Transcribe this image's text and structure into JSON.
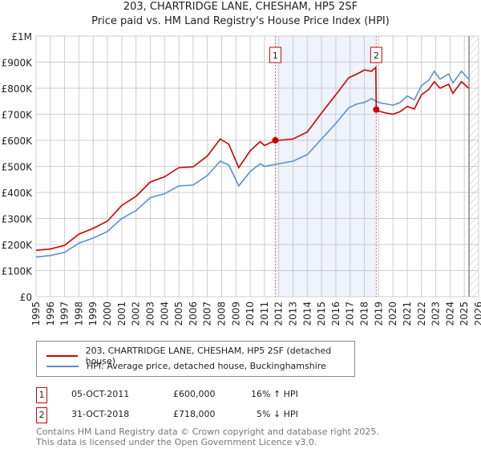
{
  "chart_data": {
    "type": "line",
    "title": "203, CHARTRIDGE LANE, CHESHAM, HP5 2SF",
    "subtitle": "Price paid vs. HM Land Registry's House Price Index (HPI)",
    "xlim": [
      1995,
      2026
    ],
    "ylim": [
      0,
      1000000
    ],
    "x_ticks": [
      "1995",
      "1996",
      "1997",
      "1998",
      "1999",
      "2000",
      "2001",
      "2002",
      "2003",
      "2004",
      "2005",
      "2006",
      "2007",
      "2008",
      "2009",
      "2010",
      "2011",
      "2012",
      "2013",
      "2014",
      "2015",
      "2016",
      "2017",
      "2018",
      "2019",
      "2020",
      "2021",
      "2022",
      "2023",
      "2024",
      "2025",
      "2026"
    ],
    "y_ticks": [
      {
        "v": 0,
        "l": "£0"
      },
      {
        "v": 100000,
        "l": "£100K"
      },
      {
        "v": 200000,
        "l": "£200K"
      },
      {
        "v": 300000,
        "l": "£300K"
      },
      {
        "v": 400000,
        "l": "£400K"
      },
      {
        "v": 500000,
        "l": "£500K"
      },
      {
        "v": 600000,
        "l": "£600K"
      },
      {
        "v": 700000,
        "l": "£700K"
      },
      {
        "v": 800000,
        "l": "£800K"
      },
      {
        "v": 900000,
        "l": "£900K"
      },
      {
        "v": 1000000,
        "l": "£1M"
      }
    ],
    "series": [
      {
        "name": "203, CHARTRIDGE LANE, CHESHAM, HP5 2SF (detached house)",
        "color": "#cc0000",
        "x": [
          1995,
          1996,
          1997,
          1998,
          1999,
          2000,
          2001,
          2002,
          2003,
          2004,
          2005,
          2006,
          2007,
          2007.9,
          2008.5,
          2009.2,
          2010,
          2010.7,
          2011,
          2011.76,
          2012,
          2013,
          2014,
          2015,
          2016,
          2016.9,
          2017.5,
          2018,
          2018.5,
          2018.8,
          2018.83,
          2019,
          2019.5,
          2020,
          2020.5,
          2021,
          2021.5,
          2022,
          2022.5,
          2022.9,
          2023.3,
          2023.9,
          2024.2,
          2024.8,
          2025.3
        ],
        "y": [
          178000,
          183000,
          197000,
          240000,
          262000,
          290000,
          350000,
          385000,
          440000,
          460000,
          495000,
          498000,
          540000,
          605000,
          585000,
          495000,
          560000,
          595000,
          580000,
          600000,
          600000,
          605000,
          632000,
          705000,
          775000,
          840000,
          855000,
          870000,
          865000,
          880000,
          718000,
          712000,
          705000,
          700000,
          710000,
          730000,
          720000,
          775000,
          795000,
          825000,
          800000,
          815000,
          780000,
          825000,
          800000
        ]
      },
      {
        "name": "HPI: Average price, detached house, Buckinghamshire",
        "color": "#5b8fd0",
        "x": [
          1995,
          1996,
          1997,
          1998,
          1999,
          2000,
          2001,
          2002,
          2003,
          2004,
          2005,
          2006,
          2007,
          2007.9,
          2008.5,
          2009.2,
          2010,
          2010.7,
          2011,
          2012,
          2013,
          2014,
          2015,
          2016,
          2016.9,
          2017.5,
          2018,
          2018.5,
          2019,
          2019.5,
          2020,
          2020.5,
          2021,
          2021.5,
          2022,
          2022.5,
          2022.9,
          2023.3,
          2023.9,
          2024.2,
          2024.8,
          2025.3
        ],
        "y": [
          152000,
          158000,
          170000,
          205000,
          225000,
          250000,
          300000,
          330000,
          380000,
          395000,
          425000,
          428000,
          465000,
          520000,
          505000,
          425000,
          480000,
          510000,
          500000,
          510000,
          520000,
          545000,
          605000,
          665000,
          725000,
          740000,
          745000,
          760000,
          745000,
          740000,
          735000,
          745000,
          770000,
          755000,
          810000,
          830000,
          865000,
          835000,
          855000,
          820000,
          865000,
          835000
        ]
      }
    ],
    "sales": [
      {
        "n": "1",
        "x": 2011.76,
        "y": 600000
      },
      {
        "n": "2",
        "x": 2018.83,
        "y": 718000
      }
    ],
    "hatch_from": 2025.33
  },
  "legend": {
    "red": "203, CHARTRIDGE LANE, CHESHAM, HP5 2SF (detached house)",
    "blue": "HPI: Average price, detached house, Buckinghamshire"
  },
  "transactions": [
    {
      "n": "1",
      "date": "05-OCT-2011",
      "price": "£600,000",
      "hpi": "16% ↑ HPI"
    },
    {
      "n": "2",
      "date": "31-OCT-2018",
      "price": "£718,000",
      "hpi": "5% ↓ HPI"
    }
  ],
  "footer": [
    "Contains HM Land Registry data © Crown copyright and database right 2025.",
    "This data is licensed under the Open Government Licence v3.0."
  ]
}
